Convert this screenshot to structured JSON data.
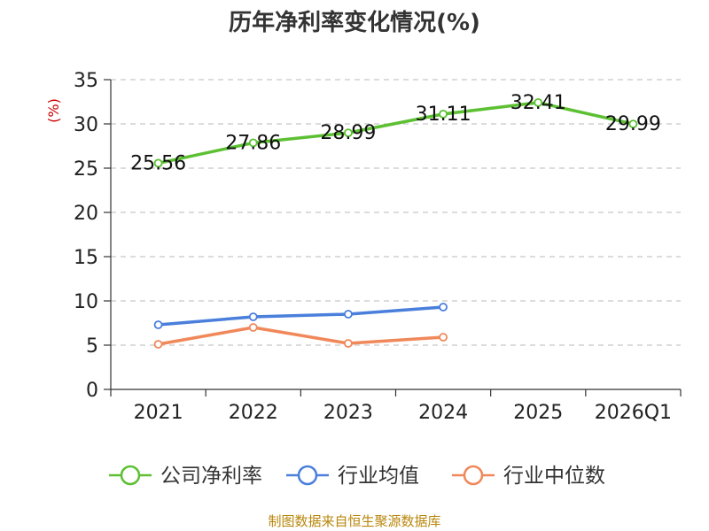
{
  "chart_data": {
    "type": "line",
    "title": "历年净利率变化情况(%)",
    "ylabel": "(%)",
    "xlabel": "",
    "categories": [
      "2021",
      "2022",
      "2023",
      "2024",
      "2025",
      "2026Q1"
    ],
    "ylim": [
      0,
      35
    ],
    "yticks": [
      0,
      5,
      10,
      15,
      20,
      25,
      30,
      35
    ],
    "grid": true,
    "legend_position": "bottom",
    "series": [
      {
        "name": "公司净利率",
        "color": "#5cc032",
        "values": [
          25.56,
          27.86,
          28.99,
          31.11,
          32.41,
          29.99
        ],
        "labels": [
          "25.56",
          "27.86",
          "28.99",
          "31.11",
          "32.41",
          "29.99"
        ]
      },
      {
        "name": "行业均值",
        "color": "#4a7fdc",
        "values": [
          7.3,
          8.2,
          8.5,
          9.3,
          null,
          null
        ]
      },
      {
        "name": "行业中位数",
        "color": "#f0885a",
        "values": [
          5.1,
          7.0,
          5.2,
          5.9,
          null,
          null
        ]
      }
    ]
  },
  "source_text": "制图数据来自恒生聚源数据库"
}
